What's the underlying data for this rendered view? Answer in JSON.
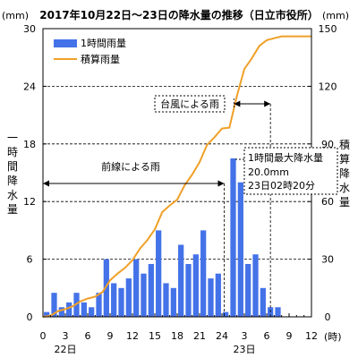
{
  "chart_data": {
    "type": "bar+line",
    "title": "2017年10月22日～23日の降水量の推移（日立市役所）",
    "left_unit": "(mm)",
    "right_unit": "(mm)",
    "ylabel_left": "一時間降水量",
    "ylabel_right": "積算降水量",
    "x_unit": "(時)",
    "x_ticks": [
      "0",
      "3",
      "6",
      "9",
      "12",
      "15",
      "18",
      "21",
      "24",
      "3",
      "6",
      "9",
      "12"
    ],
    "day_labels": [
      {
        "label": "22日",
        "hour": 3
      },
      {
        "label": "23日",
        "hour": 27
      }
    ],
    "xlim": [
      0,
      36
    ],
    "ylim_left": [
      0,
      30
    ],
    "ylim_right": [
      0,
      150
    ],
    "left_ticks": [
      "0",
      "6",
      "12",
      "18",
      "24",
      "30"
    ],
    "right_ticks": [
      "0",
      "30",
      "60",
      "90",
      "120",
      "150"
    ],
    "grid": "horizontal-dashed",
    "legend_position": "top-left",
    "series": [
      {
        "name": "1時間雨量",
        "kind": "bar",
        "axis": "left",
        "color": "#4472e8",
        "hours": [
          1,
          2,
          3,
          4,
          5,
          6,
          7,
          8,
          9,
          10,
          11,
          12,
          13,
          14,
          15,
          16,
          17,
          18,
          19,
          20,
          21,
          22,
          23,
          24,
          25,
          26,
          27,
          28,
          29,
          30,
          31,
          32
        ],
        "values": [
          0.5,
          2.5,
          1.0,
          1.5,
          2.5,
          1.5,
          1.0,
          2.5,
          6.0,
          3.5,
          3.0,
          4.0,
          6.0,
          4.5,
          5.5,
          9.0,
          3.5,
          3.0,
          7.5,
          5.5,
          6.5,
          9.0,
          4.0,
          4.5,
          0.5,
          16.5,
          14.0,
          5.5,
          6.5,
          3.0,
          1.0,
          1.0
        ]
      },
      {
        "name": "積算雨量",
        "kind": "line",
        "axis": "right",
        "color": "#f0a028",
        "hours": [
          0,
          1,
          2,
          3,
          4,
          5,
          6,
          7,
          8,
          9,
          10,
          11,
          12,
          13,
          14,
          15,
          16,
          17,
          18,
          19,
          20,
          21,
          22,
          23,
          24,
          25,
          26,
          27,
          28,
          29,
          30,
          31,
          32,
          33,
          34,
          35,
          36
        ],
        "values": [
          0,
          0.5,
          3,
          4,
          5.5,
          8,
          9.5,
          10.5,
          13,
          19,
          22.5,
          25.5,
          29.5,
          35.5,
          40,
          45.5,
          54.5,
          58,
          61,
          68.5,
          74,
          80.5,
          89.5,
          93.5,
          98,
          98.5,
          115,
          129,
          134.5,
          141,
          144,
          145,
          146,
          146,
          146,
          146,
          146
        ]
      }
    ],
    "annotations": {
      "front_rain": "前線による雨",
      "typhoon_rain": "台風による雨",
      "max_box_line1": "1時間最大降水量",
      "max_box_line2": "20.0mm",
      "max_box_line3": "23日02時20分",
      "front_range_hours": [
        0,
        24.3
      ],
      "typhoon_range_hours": [
        25.6,
        30.5
      ],
      "max_box_anchor_hour": 26
    }
  }
}
